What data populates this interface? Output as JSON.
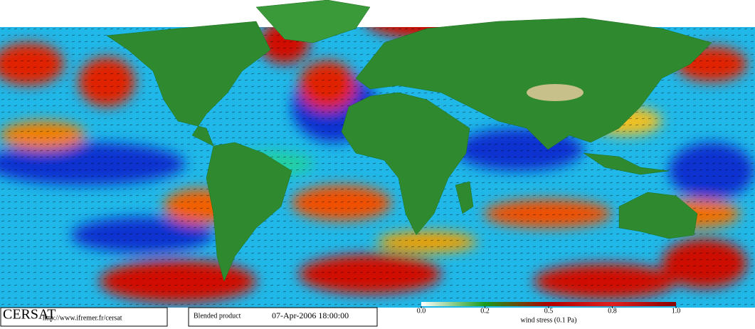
{
  "footer": {
    "logo": "CERSAT",
    "url": "http://www.ifremer.fr/cersat",
    "product": "Blended product",
    "timestamp": "07-Apr-2006 18:00:00"
  },
  "colorbar": {
    "ticks": [
      {
        "value": 0,
        "label": "0.0"
      },
      0.2,
      0.5,
      0.8,
      {
        "value": 1,
        "label": "1.0"
      }
    ],
    "label": "wind stress (0.1 Pa)"
  }
}
